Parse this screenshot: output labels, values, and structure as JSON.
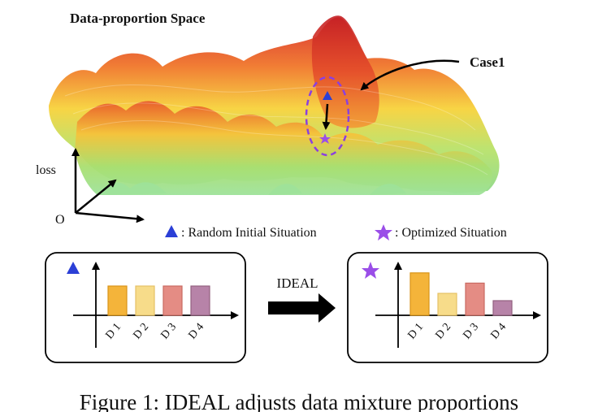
{
  "title": "Data-proportion Space",
  "case_label": "Case1",
  "axis_y_label": "loss",
  "origin_label": "O",
  "legend": {
    "initial": ": Random Initial Situation",
    "optimized": ": Optimized Situation"
  },
  "arrow_label": "IDEAL",
  "caption": "Figure 1: IDEAL adjusts data mixture proportions",
  "colors": {
    "initial_marker": "#2b3fd6",
    "optimized_marker": "#9a4ee8",
    "bar_orange": "#f4b43a",
    "bar_yellow": "#f7dc8a",
    "bar_red": "#e48c84",
    "bar_purple": "#b783a8"
  },
  "chart_data": [
    {
      "type": "bar",
      "name": "initial",
      "categories": [
        "D 1",
        "D 2",
        "D 3",
        "D 4"
      ],
      "values": [
        1,
        1,
        1,
        1
      ]
    },
    {
      "type": "bar",
      "name": "optimized",
      "categories": [
        "D 1",
        "D 2",
        "D 3",
        "D 4"
      ],
      "values": [
        1.45,
        0.75,
        1.1,
        0.5
      ]
    }
  ]
}
